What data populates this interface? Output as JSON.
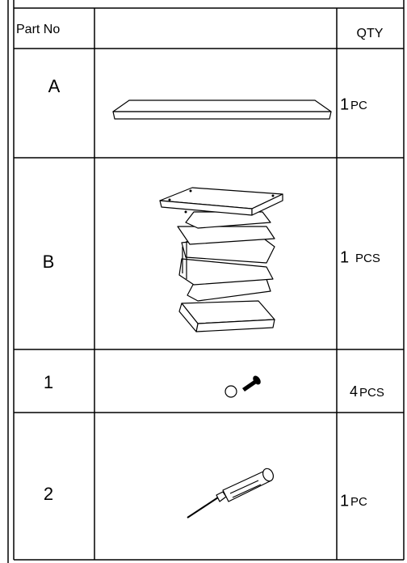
{
  "header": {
    "part": "Part No",
    "qty": "QTY"
  },
  "rows": [
    {
      "part": "A",
      "qty_number": "1",
      "qty_unit": "PC"
    },
    {
      "part": "B",
      "qty_number": "1",
      "qty_unit": "PCS"
    },
    {
      "part": "1",
      "qty_number": "4",
      "qty_unit": "PCS"
    },
    {
      "part": "2",
      "qty_number": "1",
      "qty_unit": "PC"
    }
  ]
}
